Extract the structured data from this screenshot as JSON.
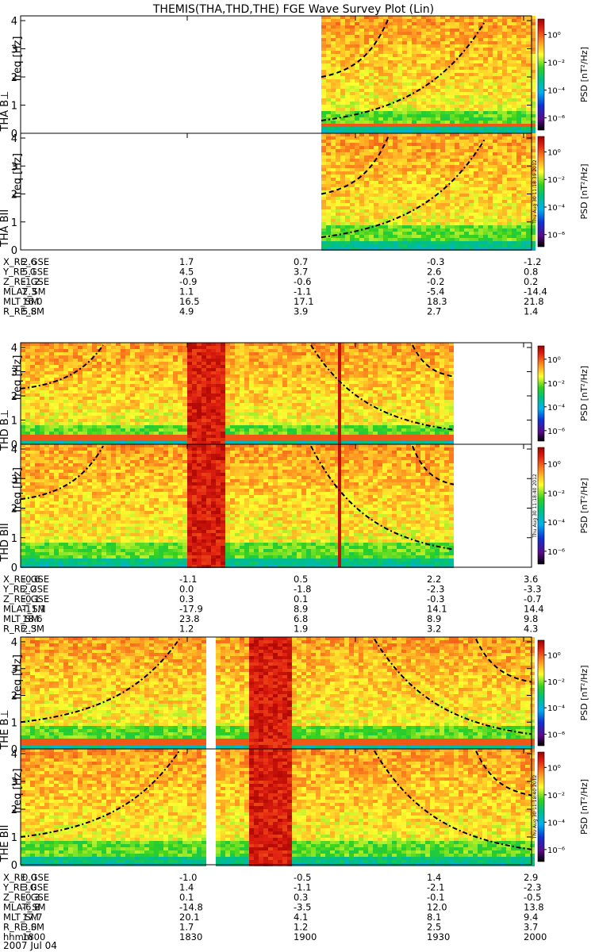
{
  "title": "THEMIS(THA,THD,THE) FGE Wave Survey Plot (Lin)",
  "freq_label": "freq [Hz]",
  "psd_label": "PSD [nT²/Hz]",
  "colorbar_ticks": [
    "10⁰",
    "10⁻²",
    "10⁻⁴",
    "10⁻⁶"
  ],
  "stamps": {
    "tha": "Thu Aug 30 11:18:39 2012",
    "thd": "Thu Aug 30 11:18:40 2012",
    "the": "Thu Aug 30 11:18:40 2012"
  },
  "chart_data": {
    "type": "heatmap",
    "date_label": "2007 Jul 04",
    "time_ticks": [
      "1800",
      "1830",
      "1900",
      "1930",
      "2000"
    ],
    "ylim": [
      0,
      4
    ],
    "yticks": [
      "0",
      "1",
      "2",
      "3",
      "4"
    ],
    "probes": [
      {
        "id": "tha",
        "panels": [
          {
            "label": "THA B⊥"
          },
          {
            "label": "THA BII"
          }
        ],
        "ephemeris": [
          {
            "name": "X_RE_GSE",
            "values": [
              "2.6",
              "1.7",
              "0.7",
              "-0.3",
              "-1.2"
            ]
          },
          {
            "name": "Y_RE_GSE",
            "values": [
              "5.1",
              "4.5",
              "3.7",
              "2.6",
              "0.8"
            ]
          },
          {
            "name": "Z_RE_GSE",
            "values": [
              "-1.2",
              "-0.9",
              "-0.6",
              "-0.2",
              "0.2"
            ]
          },
          {
            "name": "MLAT_SM",
            "values": [
              "2.3",
              "1.1",
              "-1.1",
              "-5.4",
              "-14.4"
            ]
          },
          {
            "name": "MLT_SM",
            "values": [
              "16.0",
              "16.5",
              "17.1",
              "18.3",
              "21.8"
            ]
          },
          {
            "name": "R_RE_SM",
            "values": [
              "5.8",
              "4.9",
              "3.9",
              "2.7",
              "1.4"
            ]
          }
        ]
      },
      {
        "id": "thd",
        "panels": [
          {
            "label": "THD B⊥"
          },
          {
            "label": "THD BII"
          }
        ],
        "ephemeris": [
          {
            "name": "X_RE_GSE",
            "values": [
              "-0.6",
              "-1.1",
              "0.5",
              "2.2",
              "3.6"
            ]
          },
          {
            "name": "Y_RE_GSE",
            "values": [
              "2.2",
              "0.0",
              "-1.8",
              "-2.3",
              "-3.3"
            ]
          },
          {
            "name": "Z_RE_GSE",
            "values": [
              "-0.1",
              "0.3",
              "0.1",
              "-0.3",
              "-0.7"
            ]
          },
          {
            "name": "MLAT_SM",
            "values": [
              "-11.1",
              "-17.9",
              "8.9",
              "14.1",
              "14.4"
            ]
          },
          {
            "name": "MLT_SM",
            "values": [
              "18.6",
              "23.8",
              "6.8",
              "8.9",
              "9.8"
            ]
          },
          {
            "name": "R_RE_SM",
            "values": [
              "2.3",
              "1.2",
              "1.9",
              "3.2",
              "4.3"
            ]
          }
        ]
      },
      {
        "id": "the",
        "panels": [
          {
            "label": "THE B⊥"
          },
          {
            "label": "THE BII"
          }
        ],
        "ephemeris": [
          {
            "name": "X_RE_GSE",
            "values": [
              "0.0",
              "-1.0",
              "-0.5",
              "1.4",
              "2.9"
            ]
          },
          {
            "name": "Y_RE_GSE",
            "values": [
              "3.0",
              "1.4",
              "-1.1",
              "-2.1",
              "-2.3"
            ]
          },
          {
            "name": "Z_RE_GSE",
            "values": [
              "-0.3",
              "0.1",
              "0.3",
              "-0.1",
              "-0.5"
            ]
          },
          {
            "name": "MLAT_SM",
            "values": [
              "-6.8",
              "-14.8",
              "-3.5",
              "12.0",
              "13.8"
            ]
          },
          {
            "name": "MLT_SM",
            "values": [
              "17.7",
              "20.1",
              "4.1",
              "8.1",
              "9.4"
            ]
          },
          {
            "name": "R_RE_SM",
            "values": [
              "3.0",
              "1.7",
              "1.2",
              "2.5",
              "3.7"
            ]
          },
          {
            "name": "hhmm",
            "values": [
              "1800",
              "1830",
              "1900",
              "1930",
              "2000"
            ]
          }
        ]
      }
    ]
  }
}
